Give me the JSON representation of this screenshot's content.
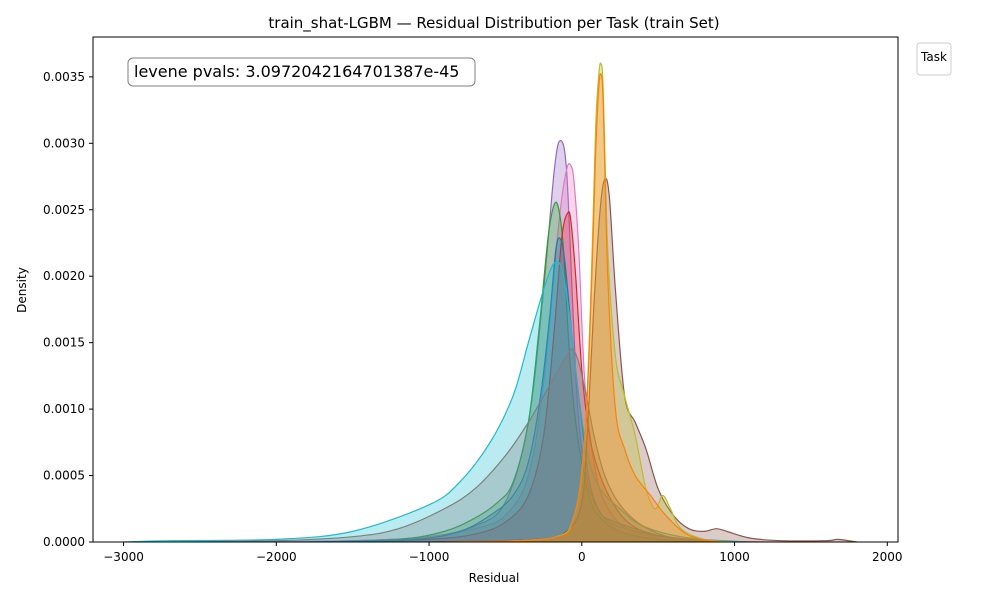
{
  "chart_data": {
    "type": "area",
    "title": "train_shat-LGBM — Residual Distribution per Task (train Set)",
    "xlabel": "Residual",
    "ylabel": "Density",
    "xlim": [
      -3200,
      2070
    ],
    "ylim": [
      0,
      0.0038
    ],
    "xticks": [
      -3000,
      -2000,
      -1000,
      0,
      1000,
      2000
    ],
    "xtick_labels": [
      "−3000",
      "−2000",
      "−1000",
      "0",
      "1000",
      "2000"
    ],
    "yticks": [
      0,
      0.0005,
      0.001,
      0.0015,
      0.002,
      0.0025,
      0.003,
      0.0035
    ],
    "ytick_labels": [
      "0.0000",
      "0.0005",
      "0.0010",
      "0.0015",
      "0.0020",
      "0.0025",
      "0.0030",
      "0.0035"
    ],
    "grid": false,
    "legend": {
      "title": "Task",
      "placement": "outside-top-right",
      "entries": []
    },
    "annotation": "levene pvals: 3.0972042164701387e-45",
    "series": [
      {
        "color": "#9467bd",
        "x": [
          -2300,
          -1500,
          -1000,
          -700,
          -500,
          -350,
          -250,
          -180,
          -140,
          -100,
          -60,
          -20,
          50,
          150,
          300,
          500,
          800,
          1200
        ],
        "y": [
          0,
          1e-05,
          4e-05,
          0.00012,
          0.0003,
          0.0009,
          0.0019,
          0.0028,
          0.00302,
          0.0028,
          0.0018,
          0.0009,
          0.0004,
          0.00018,
          0.0001,
          5e-05,
          1e-05,
          0
        ]
      },
      {
        "color": "#e377c2",
        "x": [
          -2400,
          -1500,
          -1000,
          -700,
          -500,
          -350,
          -250,
          -150,
          -100,
          -70,
          -50,
          -20,
          20,
          80,
          150,
          300,
          600,
          1000
        ],
        "y": [
          0,
          1e-05,
          4e-05,
          0.0001,
          0.0002,
          0.0005,
          0.0012,
          0.0024,
          0.0028,
          0.00283,
          0.0027,
          0.0022,
          0.0012,
          0.0006,
          0.0003,
          0.0001,
          3e-05,
          0
        ]
      },
      {
        "color": "#2ca02c",
        "x": [
          -1800,
          -1200,
          -900,
          -700,
          -550,
          -450,
          -350,
          -280,
          -220,
          -180,
          -150,
          -120,
          -80,
          -40,
          0,
          60,
          150,
          300,
          600,
          1000
        ],
        "y": [
          0,
          2e-05,
          8e-05,
          0.00018,
          0.0003,
          0.00045,
          0.0009,
          0.0016,
          0.0023,
          0.00254,
          0.0025,
          0.0022,
          0.0014,
          0.0009,
          0.0006,
          0.0003,
          0.00015,
          6e-05,
          1e-05,
          0
        ]
      },
      {
        "color": "#d62728",
        "x": [
          -1600,
          -1000,
          -700,
          -500,
          -350,
          -250,
          -180,
          -130,
          -90,
          -70,
          -40,
          0,
          50,
          120,
          200,
          300,
          450,
          700,
          1000
        ],
        "y": [
          0,
          2e-05,
          6e-05,
          0.00015,
          0.00035,
          0.0008,
          0.0016,
          0.0023,
          0.00248,
          0.0024,
          0.002,
          0.0013,
          0.0008,
          0.0005,
          0.0003,
          0.00015,
          6e-05,
          2e-05,
          0
        ]
      },
      {
        "color": "#1f77b4",
        "x": [
          -1800,
          -1100,
          -800,
          -600,
          -450,
          -350,
          -270,
          -210,
          -170,
          -140,
          -110,
          -60,
          0,
          50,
          120,
          200,
          350,
          500,
          700,
          1000
        ],
        "y": [
          0,
          2e-05,
          8e-05,
          0.0002,
          0.00035,
          0.0006,
          0.0011,
          0.0017,
          0.0022,
          0.00228,
          0.0021,
          0.0015,
          0.0009,
          0.00045,
          0.00022,
          0.00016,
          0.0001,
          5e-05,
          1e-05,
          0
        ]
      },
      {
        "color": "#17becf",
        "x": [
          -3000,
          -2700,
          -2000,
          -1500,
          -1000,
          -800,
          -600,
          -450,
          -350,
          -250,
          -180,
          -130,
          -80,
          -20,
          40,
          120,
          250,
          400,
          700,
          1100
        ],
        "y": [
          0,
          1e-05,
          2e-05,
          8e-05,
          0.00028,
          0.00045,
          0.00075,
          0.0011,
          0.0015,
          0.0019,
          0.0021,
          0.00205,
          0.0017,
          0.0011,
          0.00065,
          0.0004,
          0.00025,
          0.00012,
          3e-05,
          0
        ]
      },
      {
        "color": "#7f7f7f",
        "x": [
          -2700,
          -2000,
          -1500,
          -1200,
          -900,
          -700,
          -500,
          -350,
          -250,
          -150,
          -100,
          -60,
          -20,
          30,
          80,
          150,
          250,
          400,
          600,
          900
        ],
        "y": [
          0,
          1e-05,
          4e-05,
          0.0001,
          0.00025,
          0.0004,
          0.00065,
          0.0009,
          0.0011,
          0.0013,
          0.0014,
          0.00145,
          0.00135,
          0.0011,
          0.0008,
          0.0005,
          0.00028,
          0.00012,
          3e-05,
          0
        ]
      },
      {
        "color": "#8c564b",
        "x": [
          -1000,
          -300,
          -100,
          0,
          40,
          80,
          120,
          150,
          180,
          220,
          280,
          350,
          420,
          500,
          600,
          700,
          800,
          880,
          950,
          1100,
          1300,
          1600,
          1680,
          1800
        ],
        "y": [
          0,
          2e-05,
          8e-05,
          0.0003,
          0.0009,
          0.0018,
          0.0025,
          0.00273,
          0.0026,
          0.0019,
          0.0011,
          0.0009,
          0.0007,
          0.0004,
          0.0002,
          0.0001,
          8e-05,
          0.0001,
          8e-05,
          3e-05,
          1e-05,
          1e-05,
          2e-05,
          0
        ]
      },
      {
        "color": "#bcbd22",
        "x": [
          -800,
          -200,
          -50,
          20,
          60,
          90,
          110,
          125,
          140,
          170,
          220,
          280,
          350,
          420,
          480,
          530,
          580,
          650,
          800,
          1000
        ],
        "y": [
          0,
          3e-05,
          0.0002,
          0.0008,
          0.0019,
          0.0031,
          0.0035,
          0.0036,
          0.0034,
          0.0022,
          0.0014,
          0.0011,
          0.0008,
          0.0004,
          0.00025,
          0.00035,
          0.00025,
          0.0001,
          2e-05,
          0
        ]
      },
      {
        "color": "#ff7f0e",
        "x": [
          -900,
          -200,
          -50,
          20,
          60,
          90,
          110,
          125,
          140,
          170,
          220,
          280,
          350,
          450,
          550,
          700,
          900
        ],
        "y": [
          0,
          3e-05,
          0.0002,
          0.0008,
          0.0018,
          0.0029,
          0.0034,
          0.00352,
          0.0033,
          0.002,
          0.001,
          0.0007,
          0.0005,
          0.00035,
          0.0002,
          5e-05,
          0
        ]
      }
    ]
  }
}
